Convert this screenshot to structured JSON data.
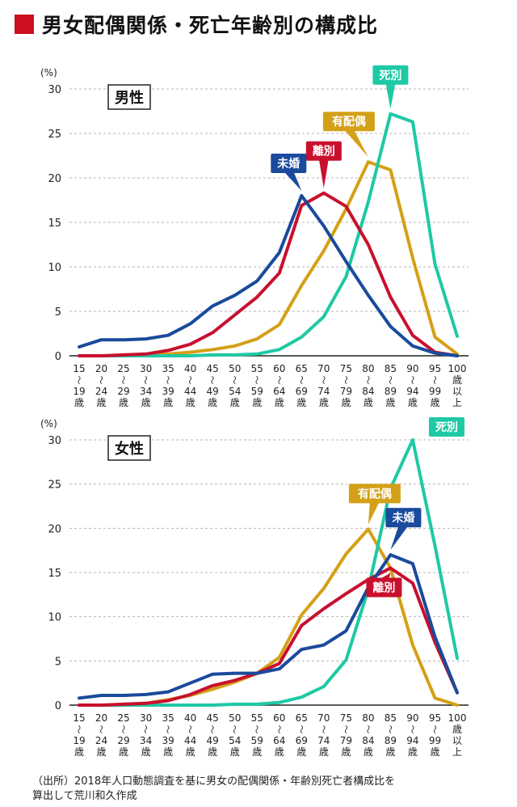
{
  "header": {
    "title": "男女配偶関係・死亡年齢別の構成比",
    "accent_color": "#cc1020"
  },
  "series_colors": {
    "未婚": "#1a4a9c",
    "離別": "#c8102e",
    "有配偶": "#d4a017",
    "死別": "#1ec9a5"
  },
  "chart_data": [
    {
      "type": "line",
      "title": "男性",
      "ylabel": "(%)",
      "ylim": [
        0,
        30
      ],
      "yticks": [
        0,
        5,
        10,
        15,
        20,
        25,
        30
      ],
      "grid": true,
      "categories": [
        [
          "15",
          "〜",
          "19",
          "歳"
        ],
        [
          "20",
          "〜",
          "24",
          "歳"
        ],
        [
          "25",
          "〜",
          "29",
          "歳"
        ],
        [
          "30",
          "〜",
          "34",
          "歳"
        ],
        [
          "35",
          "〜",
          "39",
          "歳"
        ],
        [
          "40",
          "〜",
          "44",
          "歳"
        ],
        [
          "45",
          "〜",
          "49",
          "歳"
        ],
        [
          "50",
          "〜",
          "54",
          "歳"
        ],
        [
          "55",
          "〜",
          "59",
          "歳"
        ],
        [
          "60",
          "〜",
          "64",
          "歳"
        ],
        [
          "65",
          "〜",
          "69",
          "歳"
        ],
        [
          "70",
          "〜",
          "74",
          "歳"
        ],
        [
          "75",
          "〜",
          "79",
          "歳"
        ],
        [
          "80",
          "〜",
          "84",
          "歳"
        ],
        [
          "85",
          "〜",
          "89",
          "歳"
        ],
        [
          "90",
          "〜",
          "94",
          "歳"
        ],
        [
          "95",
          "〜",
          "99",
          "歳"
        ],
        [
          "100",
          "歳",
          "以",
          "上"
        ]
      ],
      "series": [
        {
          "name": "有配偶",
          "values": [
            0.0,
            0.0,
            0.0,
            0.1,
            0.2,
            0.4,
            0.7,
            1.1,
            1.9,
            3.5,
            7.9,
            11.8,
            16.5,
            21.8,
            20.9,
            11.0,
            2.1,
            0.2
          ]
        },
        {
          "name": "死別",
          "values": [
            0.0,
            0.0,
            0.0,
            0.0,
            0.0,
            0.0,
            0.1,
            0.1,
            0.2,
            0.7,
            2.1,
            4.4,
            8.9,
            17.3,
            27.2,
            26.3,
            10.3,
            2.2
          ]
        },
        {
          "name": "離別",
          "values": [
            0.0,
            0.0,
            0.1,
            0.2,
            0.6,
            1.3,
            2.6,
            4.6,
            6.6,
            9.3,
            16.9,
            18.3,
            16.8,
            12.5,
            6.6,
            2.3,
            0.4,
            0.0
          ]
        },
        {
          "name": "未婚",
          "values": [
            1.0,
            1.8,
            1.8,
            1.9,
            2.3,
            3.6,
            5.6,
            6.8,
            8.4,
            11.6,
            18.0,
            14.6,
            10.6,
            6.8,
            3.3,
            1.1,
            0.3,
            0.0
          ]
        }
      ],
      "labels": [
        {
          "text": "死別",
          "series": "死別",
          "at": 14
        },
        {
          "text": "有配偶",
          "series": "有配偶",
          "at": 13
        },
        {
          "text": "離別",
          "series": "離別",
          "at": 11
        },
        {
          "text": "未婚",
          "series": "未婚",
          "at": 10
        }
      ]
    },
    {
      "type": "line",
      "title": "女性",
      "ylabel": "(%)",
      "ylim": [
        0,
        30
      ],
      "yticks": [
        0,
        5,
        10,
        15,
        20,
        25,
        30
      ],
      "grid": true,
      "categories": [
        [
          "15",
          "〜",
          "19",
          "歳"
        ],
        [
          "20",
          "〜",
          "24",
          "歳"
        ],
        [
          "25",
          "〜",
          "29",
          "歳"
        ],
        [
          "30",
          "〜",
          "34",
          "歳"
        ],
        [
          "35",
          "〜",
          "39",
          "歳"
        ],
        [
          "40",
          "〜",
          "44",
          "歳"
        ],
        [
          "45",
          "〜",
          "49",
          "歳"
        ],
        [
          "50",
          "〜",
          "54",
          "歳"
        ],
        [
          "55",
          "〜",
          "59",
          "歳"
        ],
        [
          "60",
          "〜",
          "64",
          "歳"
        ],
        [
          "65",
          "〜",
          "69",
          "歳"
        ],
        [
          "70",
          "〜",
          "74",
          "歳"
        ],
        [
          "75",
          "〜",
          "79",
          "歳"
        ],
        [
          "80",
          "〜",
          "84",
          "歳"
        ],
        [
          "85",
          "〜",
          "89",
          "歳"
        ],
        [
          "90",
          "〜",
          "94",
          "歳"
        ],
        [
          "95",
          "〜",
          "99",
          "歳"
        ],
        [
          "100",
          "歳",
          "以",
          "上"
        ]
      ],
      "series": [
        {
          "name": "有配偶",
          "values": [
            0.0,
            0.0,
            0.1,
            0.2,
            0.6,
            1.1,
            1.8,
            2.6,
            3.6,
            5.4,
            10.2,
            13.2,
            17.1,
            19.9,
            15.5,
            6.8,
            0.8,
            0.0
          ]
        },
        {
          "name": "死別",
          "values": [
            0.0,
            0.0,
            0.0,
            0.0,
            0.0,
            0.0,
            0.0,
            0.1,
            0.1,
            0.3,
            0.9,
            2.1,
            5.1,
            13.1,
            24.5,
            30.0,
            18.0,
            5.3
          ]
        },
        {
          "name": "離別",
          "values": [
            0.0,
            0.0,
            0.1,
            0.2,
            0.5,
            1.2,
            2.2,
            2.8,
            3.6,
            4.7,
            9.0,
            10.9,
            12.6,
            14.2,
            15.5,
            13.8,
            7.1,
            1.4
          ]
        },
        {
          "name": "未婚",
          "values": [
            0.8,
            1.1,
            1.1,
            1.2,
            1.5,
            2.5,
            3.5,
            3.6,
            3.6,
            4.1,
            6.3,
            6.8,
            8.4,
            13.3,
            17.0,
            16.0,
            7.7,
            1.4
          ]
        }
      ],
      "labels": [
        {
          "text": "死別",
          "series": "死別",
          "at": 15
        },
        {
          "text": "有配偶",
          "series": "有配偶",
          "at": 13
        },
        {
          "text": "未婚",
          "series": "未婚",
          "at": 14
        },
        {
          "text": "離別",
          "series": "離別",
          "at": 14
        }
      ]
    }
  ],
  "footer": {
    "line1": "（出所）2018年人口動態調査を基に男女の配偶関係・年齢別死亡者構成比を",
    "line2": "算出して荒川和久作成"
  }
}
